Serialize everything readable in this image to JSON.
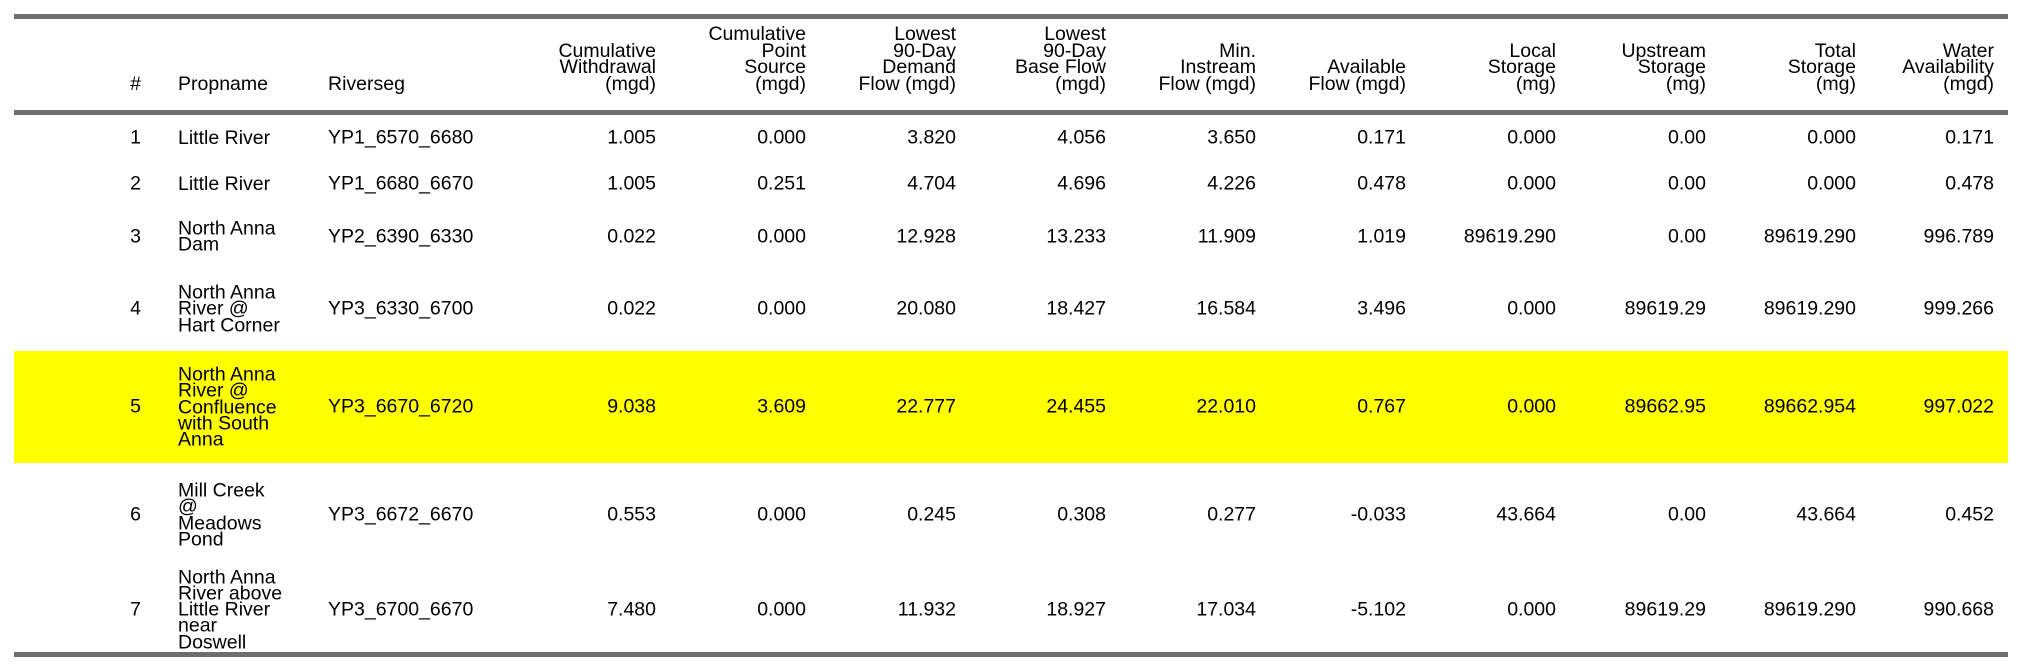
{
  "highlight_color": "#ffff00",
  "rule_color": "#6e6e6e",
  "headers": {
    "num": "#",
    "propname": "Propname",
    "riverseg": "Riverseg",
    "cum_withdrawal": "Cumulative\nWithdrawal\n(mgd)",
    "cum_point_source": "Cumulative\nPoint\nSource\n(mgd)",
    "lowest_demand": "Lowest\n90-Day\nDemand\nFlow (mgd)",
    "lowest_base": "Lowest\n90-Day\nBase Flow\n(mgd)",
    "min_instream": "Min.\nInstream\nFlow (mgd)",
    "available_flow": "Available\nFlow (mgd)",
    "local_storage": "Local\nStorage\n(mg)",
    "upstream_storage": "Upstream\nStorage\n(mg)",
    "total_storage": "Total\nStorage\n(mg)",
    "water_availability": "Water\nAvailability\n(mgd)"
  },
  "rows": [
    {
      "num": "1",
      "propname": "Little River",
      "riverseg": "YP1_6570_6680",
      "cum_withdrawal": "1.005",
      "cum_point_source": "0.000",
      "lowest_demand": "3.820",
      "lowest_base": "4.056",
      "min_instream": "3.650",
      "available_flow": "0.171",
      "local_storage": "0.000",
      "upstream_storage": "0.00",
      "total_storage": "0.000",
      "water_availability": "0.171"
    },
    {
      "num": "2",
      "propname": "Little River",
      "riverseg": "YP1_6680_6670",
      "cum_withdrawal": "1.005",
      "cum_point_source": "0.251",
      "lowest_demand": "4.704",
      "lowest_base": "4.696",
      "min_instream": "4.226",
      "available_flow": "0.478",
      "local_storage": "0.000",
      "upstream_storage": "0.00",
      "total_storage": "0.000",
      "water_availability": "0.478"
    },
    {
      "num": "3",
      "propname": "North Anna\nDam",
      "riverseg": "YP2_6390_6330",
      "cum_withdrawal": "0.022",
      "cum_point_source": "0.000",
      "lowest_demand": "12.928",
      "lowest_base": "13.233",
      "min_instream": "11.909",
      "available_flow": "1.019",
      "local_storage": "89619.290",
      "upstream_storage": "0.00",
      "total_storage": "89619.290",
      "water_availability": "996.789"
    },
    {
      "num": "4",
      "propname": "North Anna\nRiver @\nHart Corner",
      "riverseg": "YP3_6330_6700",
      "cum_withdrawal": "0.022",
      "cum_point_source": "0.000",
      "lowest_demand": "20.080",
      "lowest_base": "18.427",
      "min_instream": "16.584",
      "available_flow": "3.496",
      "local_storage": "0.000",
      "upstream_storage": "89619.29",
      "total_storage": "89619.290",
      "water_availability": "999.266"
    },
    {
      "num": "5",
      "propname": "North Anna\nRiver @\nConfluence\nwith South\nAnna",
      "riverseg": "YP3_6670_6720",
      "cum_withdrawal": "9.038",
      "cum_point_source": "3.609",
      "lowest_demand": "22.777",
      "lowest_base": "24.455",
      "min_instream": "22.010",
      "available_flow": "0.767",
      "local_storage": "0.000",
      "upstream_storage": "89662.95",
      "total_storage": "89662.954",
      "water_availability": "997.022"
    },
    {
      "num": "6",
      "propname": "Mill Creek\n@\nMeadows\nPond",
      "riverseg": "YP3_6672_6670",
      "cum_withdrawal": "0.553",
      "cum_point_source": "0.000",
      "lowest_demand": "0.245",
      "lowest_base": "0.308",
      "min_instream": "0.277",
      "available_flow": "-0.033",
      "local_storage": "43.664",
      "upstream_storage": "0.00",
      "total_storage": "43.664",
      "water_availability": "0.452"
    },
    {
      "num": "7",
      "propname": "North Anna\nRiver above\nLittle River\nnear\nDoswell",
      "riverseg": "YP3_6700_6670",
      "cum_withdrawal": "7.480",
      "cum_point_source": "0.000",
      "lowest_demand": "11.932",
      "lowest_base": "18.927",
      "min_instream": "17.034",
      "available_flow": "-5.102",
      "local_storage": "0.000",
      "upstream_storage": "89619.29",
      "total_storage": "89619.290",
      "water_availability": "990.668"
    }
  ]
}
